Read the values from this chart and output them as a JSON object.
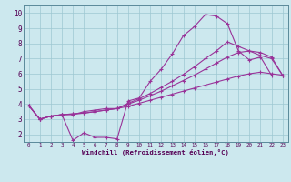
{
  "xlabel": "Windchill (Refroidissement éolien,°C)",
  "bg_color": "#cce8ee",
  "grid_color": "#9dc8d2",
  "line_color": "#993399",
  "xlim": [
    -0.5,
    23.5
  ],
  "ylim": [
    1.5,
    10.5
  ],
  "xticks": [
    0,
    1,
    2,
    3,
    4,
    5,
    6,
    7,
    8,
    9,
    10,
    11,
    12,
    13,
    14,
    15,
    16,
    17,
    18,
    19,
    20,
    21,
    22,
    23
  ],
  "yticks": [
    2,
    3,
    4,
    5,
    6,
    7,
    8,
    9,
    10
  ],
  "series": [
    {
      "x": [
        0,
        1,
        2,
        3,
        4,
        5,
        6,
        7,
        8,
        9,
        10,
        11,
        12,
        13,
        14,
        15,
        16,
        17,
        18,
        19,
        20,
        21,
        22
      ],
      "y": [
        3.9,
        3.0,
        3.2,
        3.3,
        1.6,
        2.1,
        1.8,
        1.8,
        1.7,
        4.2,
        4.4,
        5.5,
        6.3,
        7.3,
        8.5,
        9.1,
        9.9,
        9.8,
        9.3,
        7.5,
        6.9,
        7.1,
        5.9
      ]
    },
    {
      "x": [
        0,
        1,
        2,
        3,
        4,
        5,
        6,
        7,
        8,
        9,
        10,
        11,
        12,
        13,
        14,
        15,
        16,
        17,
        18,
        19,
        20,
        21,
        22,
        23
      ],
      "y": [
        3.9,
        3.0,
        3.2,
        3.3,
        3.3,
        3.5,
        3.6,
        3.7,
        3.7,
        3.85,
        4.05,
        4.25,
        4.45,
        4.65,
        4.85,
        5.05,
        5.25,
        5.45,
        5.65,
        5.85,
        6.0,
        6.1,
        6.0,
        5.9
      ]
    },
    {
      "x": [
        0,
        1,
        2,
        3,
        4,
        5,
        6,
        7,
        8,
        9,
        10,
        11,
        12,
        13,
        14,
        15,
        16,
        17,
        18,
        19,
        20,
        21,
        22,
        23
      ],
      "y": [
        3.9,
        3.0,
        3.2,
        3.3,
        3.35,
        3.4,
        3.5,
        3.6,
        3.7,
        4.0,
        4.25,
        4.55,
        4.85,
        5.2,
        5.55,
        5.9,
        6.3,
        6.7,
        7.1,
        7.4,
        7.5,
        7.4,
        7.1,
        5.9
      ]
    },
    {
      "x": [
        0,
        1,
        2,
        3,
        4,
        5,
        6,
        7,
        8,
        9,
        10,
        11,
        12,
        13,
        14,
        15,
        16,
        17,
        18,
        19,
        20,
        21,
        22,
        23
      ],
      "y": [
        3.9,
        3.0,
        3.2,
        3.3,
        3.35,
        3.4,
        3.5,
        3.6,
        3.7,
        4.05,
        4.35,
        4.7,
        5.1,
        5.5,
        5.95,
        6.45,
        7.0,
        7.5,
        8.1,
        7.8,
        7.5,
        7.2,
        7.0,
        5.9
      ]
    }
  ]
}
